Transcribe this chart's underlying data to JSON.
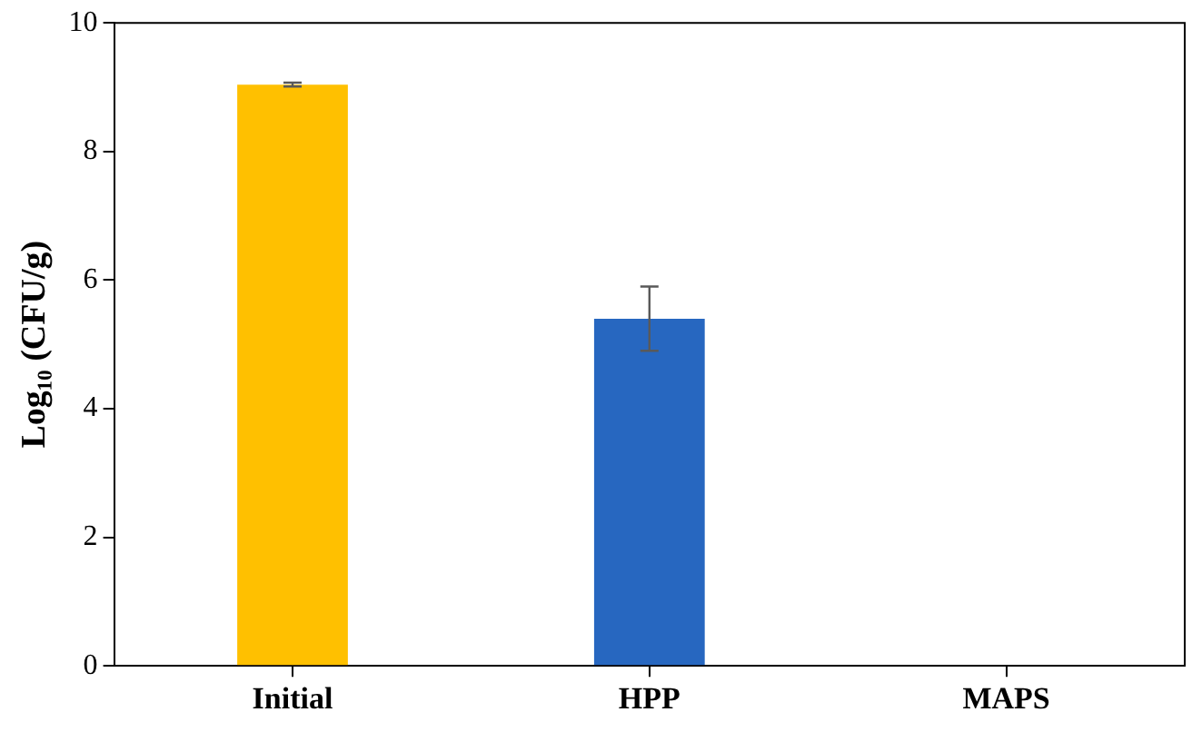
{
  "chart_data": {
    "type": "bar",
    "ylabel": "Log₁₀ (CFU/g)",
    "categories": [
      "Initial",
      "HPP",
      "MAPS"
    ],
    "values": [
      9.04,
      5.4,
      0
    ],
    "colors": [
      "#ffc000",
      "#2767c0",
      "#a5a5a5"
    ],
    "errors": [
      0.03,
      0.5,
      null
    ],
    "ylim": [
      0,
      10
    ],
    "yticks": [
      0,
      2,
      4,
      6,
      8,
      10
    ],
    "grid": false,
    "legend": false
  }
}
